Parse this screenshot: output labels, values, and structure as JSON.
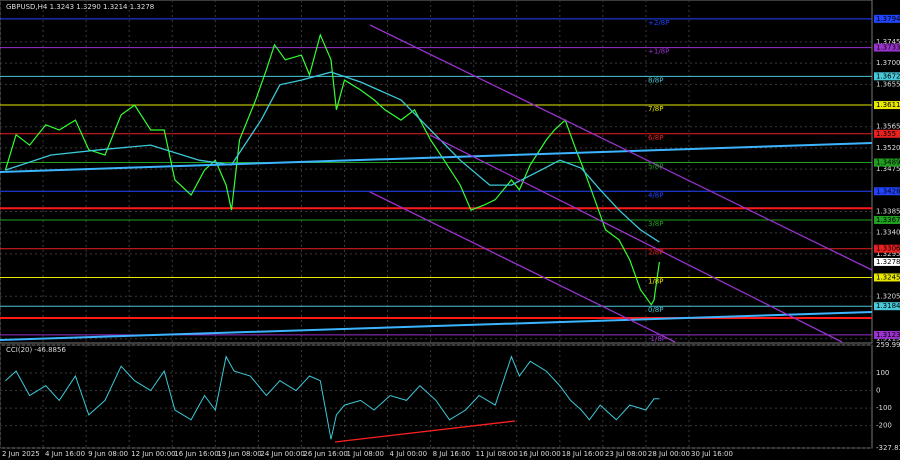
{
  "chart_data": [
    {
      "type": "line",
      "title": "GBPUSD,H4  1.3243 1.3290 1.3214 1.3278",
      "x": [
        2,
        6,
        11,
        17,
        22,
        28,
        33,
        39,
        45,
        50,
        56,
        61,
        65,
        71,
        76,
        80,
        84,
        86,
        89,
        95,
        99,
        102,
        106,
        112,
        115,
        119,
        123,
        125,
        128,
        134,
        139,
        143,
        149,
        154,
        160,
        165,
        171,
        175,
        180,
        184,
        190,
        193,
        197,
        203,
        206,
        210,
        214,
        217,
        221,
        225,
        230,
        234,
        238,
        242,
        243,
        245
      ],
      "series": [
        {
          "color": "#33ff33",
          "values": [
            1.3473,
            1.3548,
            1.3526,
            1.3569,
            1.3558,
            1.3579,
            1.3516,
            1.3505,
            1.359,
            1.3611,
            1.3558,
            1.3558,
            1.3452,
            1.342,
            1.3473,
            1.3494,
            1.3441,
            1.3388,
            1.3537,
            1.3622,
            1.3686,
            1.3739,
            1.3707,
            1.3717,
            1.3675,
            1.376,
            1.3707,
            1.3601,
            1.3664,
            1.3643,
            1.3622,
            1.3601,
            1.3579,
            1.3601,
            1.3537,
            1.3494,
            1.3441,
            1.3388,
            1.3399,
            1.341,
            1.3452,
            1.3431,
            1.3484,
            1.3537,
            1.3558,
            1.3579,
            1.3516,
            1.3473,
            1.341,
            1.3346,
            1.3325,
            1.3282,
            1.3219,
            1.3187,
            1.3197,
            1.3278
          ]
        },
        {
          "color": "#3cc8d8",
          "x": [
            2,
            19,
            37,
            56,
            74,
            86,
            97,
            104,
            112,
            123,
            134,
            149,
            160,
            171,
            182,
            190,
            201,
            208,
            216,
            223,
            230,
            238,
            245
          ],
          "values": [
            1.3473,
            1.3505,
            1.3516,
            1.3526,
            1.3494,
            1.3484,
            1.3579,
            1.3654,
            1.3664,
            1.3681,
            1.366,
            1.3622,
            1.3558,
            1.3494,
            1.3441,
            1.3441,
            1.3473,
            1.3494,
            1.3477,
            1.3431,
            1.3388,
            1.3346,
            1.332
          ]
        }
      ],
      "xlim": [
        0,
        324
      ],
      "ylim": [
        1.3108,
        1.3834
      ],
      "yticks": [
        1.3745,
        {
          "value": 1.37,
          "label": "1.3700"
        },
        1.3655,
        1.3565,
        {
          "value": 1.352,
          "label": "1.3520"
        },
        1.3475,
        1.3385,
        {
          "value": 1.334,
          "label": "1.3340"
        },
        1.3295,
        1.3205,
        1.3115
      ],
      "xticks": [
        {
          "value": 0,
          "label": "2 Jun 2025"
        },
        {
          "value": 16,
          "label": "4 Jun 16:00"
        },
        {
          "value": 32,
          "label": "9 Jun 08:00"
        },
        {
          "value": 48,
          "label": "12 Jun 00:00"
        },
        {
          "value": 64,
          "label": "16 Jun 16:00"
        },
        {
          "value": 80,
          "label": "19 Jun 08:00"
        },
        {
          "value": 96,
          "label": "24 Jun 00:00"
        },
        {
          "value": 112,
          "label": "26 Jun 16:00"
        },
        {
          "value": 128,
          "label": "1 Jul 08:00"
        },
        {
          "value": 144,
          "label": "4 Jul 00:00"
        },
        {
          "value": 160,
          "label": "8 Jul 16:00"
        },
        {
          "value": 176,
          "label": "11 Jul 08:00"
        },
        {
          "value": 192,
          "label": "16 Jul 00:00"
        },
        {
          "value": 208,
          "label": "18 Jul 16:00"
        },
        {
          "value": 224,
          "label": "23 Jul 08:00"
        },
        {
          "value": 240,
          "label": "28 Jul 00:00"
        },
        {
          "value": 256,
          "label": "30 Jul 16:00"
        }
      ],
      "levels": [
        {
          "value": 1.3794,
          "label": "+2/8P",
          "color": "#2244ff"
        },
        {
          "value": 1.3733,
          "label": "+1/8P",
          "color": "#9932cc"
        },
        {
          "value": 1.3672,
          "label": "8/8P",
          "color": "#48c8d8"
        },
        {
          "value": 1.3611,
          "label": "7/8P",
          "color": "#e8e800"
        },
        {
          "value": 1.355,
          "label": "6/8P",
          "color": "#e82020"
        },
        {
          "value": 1.3489,
          "label": "5/8P",
          "color": "#20a020"
        },
        {
          "value": 1.3428,
          "label": "4/8P",
          "color": "#2244ff"
        },
        {
          "value": 1.3367,
          "label": "3/8P",
          "color": "#20a020"
        },
        {
          "value": 1.3306,
          "label": "2/8P",
          "color": "#e82020"
        },
        {
          "value": 1.3245,
          "label": "1/8P",
          "color": "#e8e800"
        },
        {
          "value": 1.3184,
          "label": "0/8P",
          "color": "#48c8d8"
        },
        {
          "value": 1.3123,
          "label": "-1/8P",
          "color": "#9932cc"
        }
      ],
      "lines": [
        {
          "value": 1.3392,
          "color": "#ff1a1a"
        },
        {
          "value": 1.3159,
          "color": "#ff1a1a"
        }
      ],
      "last_price": 1.3278
    },
    {
      "type": "line",
      "title": "CCI(20) -46.8856",
      "x": [
        2,
        6,
        11,
        17,
        22,
        28,
        33,
        39,
        45,
        50,
        56,
        61,
        65,
        71,
        76,
        80,
        84,
        87,
        93,
        99,
        104,
        110,
        115,
        119,
        123,
        125,
        128,
        134,
        139,
        145,
        151,
        156,
        162,
        167,
        173,
        178,
        184,
        190,
        193,
        197,
        203,
        208,
        212,
        216,
        219,
        223,
        229,
        234,
        240,
        243,
        245
      ],
      "values": [
        56,
        111,
        -28,
        28,
        -56,
        83,
        -139,
        -56,
        139,
        56,
        0,
        111,
        -111,
        -167,
        -28,
        -111,
        194,
        111,
        83,
        -28,
        56,
        0,
        83,
        56,
        -278,
        -139,
        -83,
        -56,
        -111,
        -28,
        -56,
        28,
        -56,
        -167,
        -111,
        -28,
        -83,
        194,
        83,
        167,
        111,
        28,
        -56,
        -111,
        -167,
        -83,
        -167,
        -83,
        -111,
        -47,
        -47
      ],
      "color": "#3cc8d8",
      "ylim": [
        -327.8322,
        259.9969
      ],
      "yticks": [
        259.9969,
        100,
        0,
        -100,
        -200,
        -327.8322
      ]
    }
  ]
}
